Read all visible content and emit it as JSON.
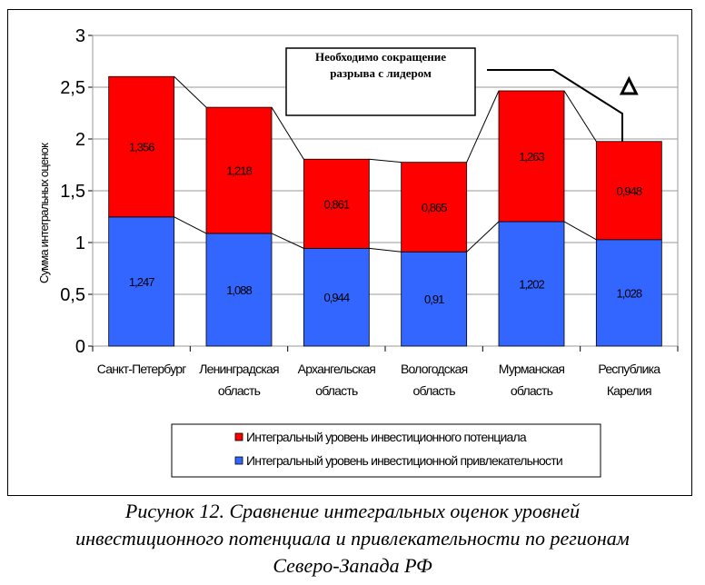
{
  "chart_data": {
    "type": "bar",
    "stacked": true,
    "categories": [
      [
        "Санкт-Петербург"
      ],
      [
        "Ленинградская",
        "область"
      ],
      [
        "Архангельская",
        "область"
      ],
      [
        "Вологодская",
        "область"
      ],
      [
        "Мурманская",
        "область"
      ],
      [
        "Республика",
        "Карелия"
      ]
    ],
    "series": [
      {
        "name": "Интегральный уровень инвестиционной привлекательности",
        "color": "#3366ff",
        "values": [
          1.247,
          1.088,
          0.944,
          0.91,
          1.202,
          1.028
        ],
        "labels": [
          "1,247",
          "1,088",
          "0,944",
          "0,91",
          "1,202",
          "1,028"
        ]
      },
      {
        "name": "Интегральный уровень инвестиционного потенциала",
        "color": "#ff0000",
        "values": [
          1.356,
          1.218,
          0.861,
          0.865,
          1.263,
          0.948
        ],
        "labels": [
          "1,356",
          "1,218",
          "0,861",
          "0,865",
          "1,263",
          "0,948"
        ]
      }
    ],
    "ylabel": "Сумма интегральных оценок",
    "ylim": [
      0,
      3
    ],
    "yticks": [
      "0",
      "0,5",
      "1",
      "1,5",
      "2",
      "2,5",
      "3"
    ],
    "grid": true,
    "legend_position": "bottom",
    "annotation": [
      "Необходимо сокращение",
      "разрыва с лидером"
    ]
  },
  "caption": [
    "Рисунок 12.  Сравнение интегральных оценок уровней",
    "инвестиционного потенциала и привлекательности по регионам",
    "Северо-Запада РФ"
  ]
}
